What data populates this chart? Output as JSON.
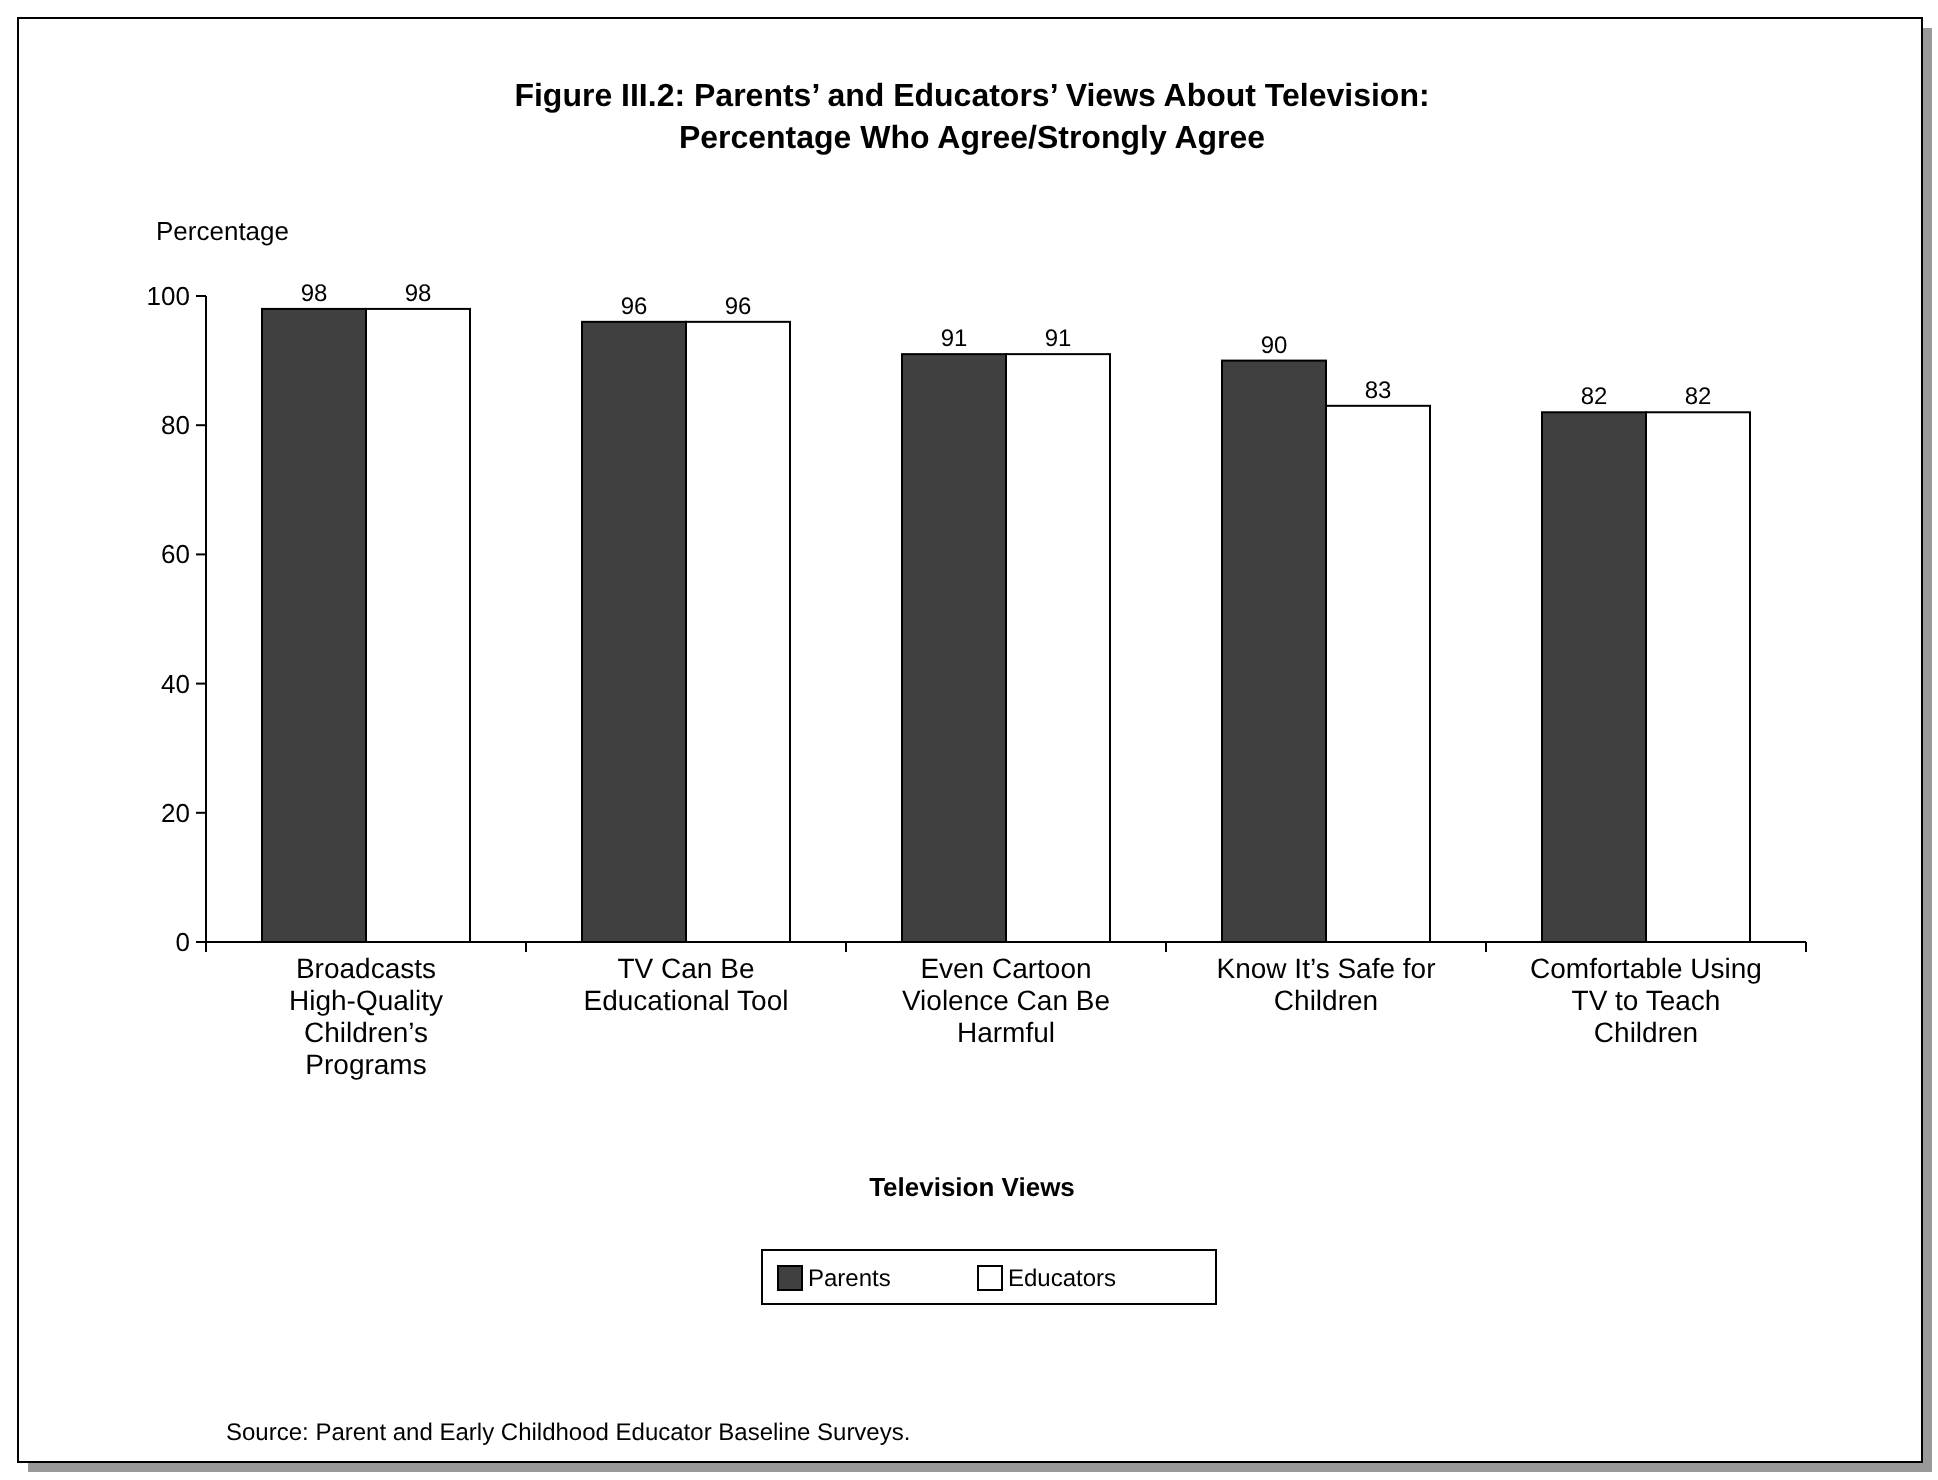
{
  "chart_data": {
    "type": "bar",
    "title": "Figure III.2:  Parents’ and Educators’ Views About Television:",
    "subtitle": "Percentage Who Agree/Strongly Agree",
    "ylabel": "Percentage",
    "xlabel": "Television Views",
    "categories": [
      "Broadcasts High-Quality Children’s Programs",
      "TV Can Be Educational Tool",
      "Even Cartoon Violence Can Be Harmful",
      "Know It’s Safe for Children",
      "Comfortable Using TV to Teach Children"
    ],
    "series": [
      {
        "name": "Parents",
        "color": "#404040",
        "values": [
          98,
          96,
          91,
          90,
          82
        ]
      },
      {
        "name": "Educators",
        "color": "#ffffff",
        "values": [
          98,
          96,
          91,
          83,
          82
        ]
      }
    ],
    "ylim": [
      0,
      100
    ],
    "yticks": [
      0,
      20,
      40,
      60,
      80,
      100
    ],
    "grid": false,
    "legend": "bottom",
    "data_labels": true,
    "annotations": [
      "Source:  Parent and Early Childhood Educator Baseline Surveys."
    ]
  }
}
